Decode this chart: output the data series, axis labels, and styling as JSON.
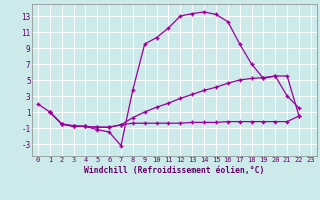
{
  "background_color": "#cceaea",
  "grid_color": "#ffffff",
  "line_color": "#990099",
  "xlabel": "Windchill (Refroidissement éolien,°C)",
  "xlim": [
    -0.5,
    23.5
  ],
  "ylim": [
    -4.5,
    14.5
  ],
  "yticks": [
    -3,
    -1,
    1,
    3,
    5,
    7,
    9,
    11,
    13
  ],
  "xticks": [
    0,
    1,
    2,
    3,
    4,
    5,
    6,
    7,
    8,
    9,
    10,
    11,
    12,
    13,
    14,
    15,
    16,
    17,
    18,
    19,
    20,
    21,
    22,
    23
  ],
  "curve1_x": [
    0,
    1,
    2,
    3,
    4,
    5,
    6,
    7,
    8,
    9,
    10,
    11,
    12,
    13,
    14,
    15,
    16,
    17,
    18,
    19,
    20,
    21,
    22
  ],
  "curve1_y": [
    2,
    1,
    -0.5,
    -0.7,
    -0.8,
    -1.2,
    -1.5,
    -3.2,
    3.8,
    9.5,
    10.3,
    11.5,
    13.0,
    13.3,
    13.5,
    13.2,
    12.3,
    9.5,
    7.0,
    5.2,
    5.5,
    3.0,
    1.5
  ],
  "curve2_x": [
    1,
    2,
    3,
    4,
    5,
    6,
    7,
    8,
    9,
    10,
    11,
    12,
    13,
    14,
    15,
    16,
    17,
    18,
    19,
    20,
    21,
    22
  ],
  "curve2_y": [
    1,
    -0.5,
    -0.8,
    -0.8,
    -0.9,
    -0.9,
    -0.6,
    0.3,
    1.0,
    1.6,
    2.1,
    2.7,
    3.2,
    3.7,
    4.1,
    4.6,
    5.0,
    5.2,
    5.3,
    5.5,
    5.5,
    0.5
  ],
  "curve3_x": [
    1,
    2,
    3,
    4,
    5,
    6,
    7,
    8,
    9,
    10,
    11,
    12,
    13,
    14,
    15,
    16,
    17,
    18,
    19,
    20,
    21,
    22
  ],
  "curve3_y": [
    1,
    -0.5,
    -0.8,
    -0.8,
    -0.9,
    -0.9,
    -0.6,
    -0.4,
    -0.4,
    -0.4,
    -0.4,
    -0.4,
    -0.3,
    -0.3,
    -0.3,
    -0.2,
    -0.2,
    -0.2,
    -0.2,
    -0.2,
    -0.2,
    0.5
  ]
}
